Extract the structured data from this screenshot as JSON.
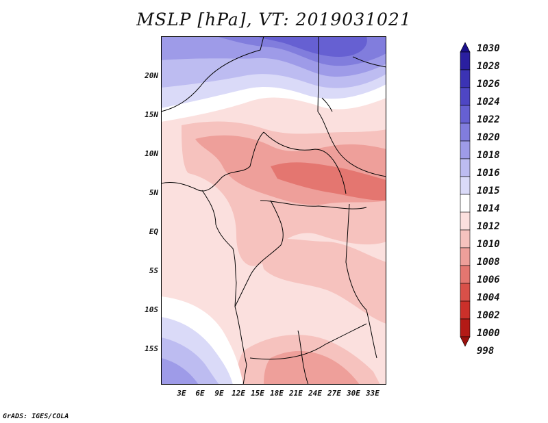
{
  "title": "MSLP [hPa], VT: 2019031021",
  "footer": "GrADS: IGES/COLA",
  "lat_labels": [
    "20N",
    "15N",
    "10N",
    "5N",
    "EQ",
    "5S",
    "10S",
    "15S"
  ],
  "lon_labels": [
    "3E",
    "6E",
    "9E",
    "12E",
    "15E",
    "18E",
    "21E",
    "24E",
    "27E",
    "30E",
    "33E"
  ],
  "colorbar": {
    "levels": [
      "1030",
      "1028",
      "1026",
      "1024",
      "1022",
      "1020",
      "1018",
      "1016",
      "1015",
      "1014",
      "1012",
      "1010",
      "1008",
      "1006",
      "1004",
      "1002",
      "1000",
      "998"
    ],
    "colors": [
      "#1a0f8a",
      "#2a1fa0",
      "#3b33b4",
      "#4e46c4",
      "#6660d2",
      "#817ddd",
      "#9e9be8",
      "#bdbcf1",
      "#dadaf8",
      "#ffffff",
      "#fbe0de",
      "#f6c2be",
      "#ee9f9a",
      "#e47670",
      "#d95049",
      "#cb302a",
      "#b31a16",
      "#9a100d"
    ]
  }
}
